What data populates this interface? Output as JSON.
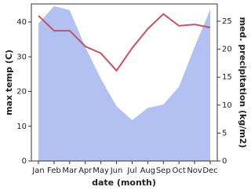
{
  "chart_data": {
    "type": "area-line",
    "categories": [
      "Jan",
      "Feb",
      "Mar",
      "Apr",
      "May",
      "Jun",
      "Jul",
      "Aug",
      "Sep",
      "Oct",
      "Nov",
      "Dec"
    ],
    "x_label": "date (month)",
    "y_label": "max temp (C)",
    "y2_label": "med. precipitation (kg/m2)",
    "ylim": [
      0,
      45.2
    ],
    "yticks": [
      0,
      10,
      20,
      30,
      40
    ],
    "y2lim": [
      0,
      28.1
    ],
    "y2ticks": [
      0,
      5,
      10,
      15,
      20,
      25
    ],
    "series": [
      {
        "name": "med. precipitation",
        "color": "#b3c0f2",
        "axis": "y2",
        "values": [
          24.6,
          27.7,
          27.0,
          20.4,
          14.7,
          9.8,
          7.3,
          9.5,
          10.1,
          13.3,
          20.4,
          27.1
        ]
      },
      {
        "name": "max temp",
        "color": "#c0545f",
        "values": [
          41.8,
          37.5,
          37.5,
          33,
          31,
          26,
          32.5,
          38,
          42.3,
          38.9,
          39.3,
          38.4
        ]
      }
    ]
  }
}
